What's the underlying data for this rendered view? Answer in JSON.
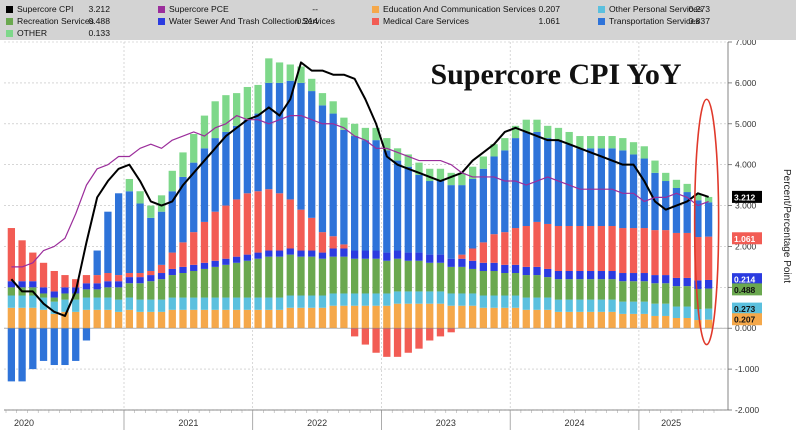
{
  "chart_data": {
    "type": "bar",
    "title": "Supercore CPI YoY",
    "ylabel": "Percent/Percentage Point",
    "ylim": [
      -2.0,
      7.0
    ],
    "yticks": [
      "7.000",
      "6.000",
      "5.000",
      "4.000",
      "3.000",
      "2.000",
      "1.000",
      "0.000",
      "-1.000",
      "-2.000"
    ],
    "years": [
      "2020",
      "2021",
      "2022",
      "2023",
      "2024",
      "2025"
    ],
    "month_count": 66,
    "series": [
      {
        "name": "Education And Communication Services",
        "value": "0.207",
        "color": "#f5a84a",
        "values": [
          0.5,
          0.5,
          0.5,
          0.45,
          0.35,
          0.4,
          0.4,
          0.45,
          0.45,
          0.45,
          0.4,
          0.45,
          0.4,
          0.4,
          0.4,
          0.45,
          0.45,
          0.45,
          0.45,
          0.45,
          0.45,
          0.45,
          0.45,
          0.45,
          0.45,
          0.45,
          0.5,
          0.5,
          0.5,
          0.5,
          0.55,
          0.55,
          0.55,
          0.55,
          0.55,
          0.55,
          0.6,
          0.6,
          0.6,
          0.6,
          0.6,
          0.55,
          0.55,
          0.55,
          0.5,
          0.5,
          0.5,
          0.5,
          0.45,
          0.45,
          0.45,
          0.4,
          0.4,
          0.4,
          0.4,
          0.4,
          0.4,
          0.35,
          0.35,
          0.35,
          0.3,
          0.3,
          0.25,
          0.25,
          0.2,
          0.21
        ]
      },
      {
        "name": "Other Personal Services",
        "value": "0.273",
        "color": "#5bc0de",
        "values": [
          0.3,
          0.3,
          0.3,
          0.3,
          0.3,
          0.3,
          0.3,
          0.3,
          0.3,
          0.3,
          0.3,
          0.3,
          0.3,
          0.3,
          0.3,
          0.3,
          0.3,
          0.3,
          0.3,
          0.3,
          0.3,
          0.3,
          0.3,
          0.3,
          0.3,
          0.3,
          0.3,
          0.3,
          0.3,
          0.3,
          0.3,
          0.3,
          0.3,
          0.3,
          0.3,
          0.3,
          0.3,
          0.3,
          0.3,
          0.3,
          0.3,
          0.3,
          0.3,
          0.3,
          0.3,
          0.3,
          0.3,
          0.3,
          0.3,
          0.3,
          0.3,
          0.3,
          0.3,
          0.3,
          0.3,
          0.3,
          0.3,
          0.3,
          0.3,
          0.3,
          0.3,
          0.3,
          0.28,
          0.28,
          0.27,
          0.27
        ]
      },
      {
        "name": "Recreation Services",
        "value": "0.488",
        "color": "#6aa84f",
        "values": [
          0.2,
          0.2,
          0.2,
          0.1,
          0.1,
          0.15,
          0.15,
          0.2,
          0.2,
          0.25,
          0.3,
          0.35,
          0.4,
          0.45,
          0.5,
          0.55,
          0.6,
          0.65,
          0.7,
          0.75,
          0.8,
          0.85,
          0.9,
          0.95,
          1.0,
          1.0,
          1.0,
          0.95,
          0.95,
          0.9,
          0.9,
          0.9,
          0.85,
          0.85,
          0.85,
          0.8,
          0.8,
          0.75,
          0.75,
          0.7,
          0.7,
          0.65,
          0.65,
          0.6,
          0.6,
          0.6,
          0.55,
          0.55,
          0.55,
          0.55,
          0.5,
          0.5,
          0.5,
          0.5,
          0.5,
          0.5,
          0.5,
          0.5,
          0.5,
          0.5,
          0.5,
          0.5,
          0.5,
          0.5,
          0.49,
          0.49
        ]
      },
      {
        "name": "Water Sewer And Trash Collection Services",
        "value": "0.214",
        "color": "#2b3be0",
        "values": [
          0.15,
          0.15,
          0.15,
          0.15,
          0.15,
          0.15,
          0.15,
          0.15,
          0.15,
          0.15,
          0.15,
          0.15,
          0.15,
          0.15,
          0.15,
          0.15,
          0.15,
          0.15,
          0.15,
          0.15,
          0.15,
          0.15,
          0.15,
          0.15,
          0.15,
          0.15,
          0.15,
          0.15,
          0.15,
          0.15,
          0.2,
          0.2,
          0.2,
          0.2,
          0.2,
          0.2,
          0.2,
          0.2,
          0.2,
          0.2,
          0.2,
          0.2,
          0.2,
          0.2,
          0.2,
          0.2,
          0.2,
          0.2,
          0.2,
          0.2,
          0.2,
          0.2,
          0.2,
          0.2,
          0.2,
          0.2,
          0.2,
          0.2,
          0.2,
          0.2,
          0.2,
          0.2,
          0.2,
          0.2,
          0.21,
          0.21
        ]
      },
      {
        "name": "Medical Care Services",
        "value": "1.061",
        "color": "#f25c54",
        "values": [
          1.3,
          1.0,
          0.7,
          0.6,
          0.5,
          0.3,
          0.2,
          0.2,
          0.2,
          0.2,
          0.15,
          0.1,
          0.1,
          0.1,
          0.2,
          0.4,
          0.6,
          0.8,
          1.0,
          1.2,
          1.3,
          1.4,
          1.5,
          1.5,
          1.5,
          1.4,
          1.2,
          1.0,
          0.8,
          0.5,
          0.3,
          0.1,
          -0.2,
          -0.4,
          -0.6,
          -0.7,
          -0.7,
          -0.6,
          -0.5,
          -0.3,
          -0.2,
          -0.1,
          0.1,
          0.3,
          0.5,
          0.7,
          0.8,
          0.9,
          1.0,
          1.1,
          1.1,
          1.1,
          1.1,
          1.1,
          1.1,
          1.1,
          1.1,
          1.1,
          1.1,
          1.1,
          1.1,
          1.1,
          1.1,
          1.1,
          1.06,
          1.06
        ]
      },
      {
        "name": "Transportation Services",
        "value": "0.837",
        "color": "#2e73d9",
        "values": [
          -1.3,
          -1.3,
          -1.0,
          -0.8,
          -0.9,
          -0.9,
          -0.8,
          -0.3,
          0.6,
          1.5,
          2.0,
          2.0,
          1.7,
          1.3,
          1.3,
          1.5,
          1.6,
          1.7,
          1.8,
          1.8,
          1.8,
          1.8,
          1.8,
          1.9,
          2.6,
          2.7,
          2.9,
          3.1,
          3.1,
          3.1,
          3.0,
          2.8,
          2.8,
          2.7,
          2.7,
          2.5,
          2.2,
          2.1,
          1.9,
          1.8,
          1.8,
          1.8,
          1.7,
          1.7,
          1.8,
          1.9,
          2.0,
          2.2,
          2.3,
          2.2,
          2.1,
          2.1,
          2.0,
          1.9,
          1.9,
          1.9,
          1.9,
          1.9,
          1.8,
          1.7,
          1.4,
          1.2,
          1.1,
          1.0,
          0.9,
          0.84
        ]
      },
      {
        "name": "OTHER",
        "value": "0.133",
        "color": "#7ed88a",
        "values": [
          0.0,
          0.0,
          0.0,
          0.0,
          0.0,
          0.0,
          0.0,
          0.0,
          0.0,
          0.0,
          0.0,
          0.3,
          0.3,
          0.3,
          0.4,
          0.5,
          0.6,
          0.7,
          0.8,
          0.9,
          0.9,
          0.8,
          0.8,
          0.7,
          0.6,
          0.5,
          0.4,
          0.4,
          0.3,
          0.3,
          0.3,
          0.3,
          0.3,
          0.3,
          0.3,
          0.3,
          0.3,
          0.3,
          0.3,
          0.3,
          0.3,
          0.3,
          0.3,
          0.3,
          0.3,
          0.3,
          0.3,
          0.3,
          0.3,
          0.3,
          0.3,
          0.3,
          0.3,
          0.3,
          0.3,
          0.3,
          0.3,
          0.3,
          0.3,
          0.3,
          0.3,
          0.2,
          0.2,
          0.2,
          0.15,
          0.13
        ]
      }
    ],
    "lines": [
      {
        "name": "Supercore CPI",
        "value": "3.212",
        "color": "#000000",
        "values": [
          1.2,
          0.9,
          0.9,
          0.6,
          0.4,
          0.3,
          0.9,
          2.1,
          3.2,
          3.6,
          3.9,
          4.0,
          3.6,
          3.1,
          3.0,
          3.1,
          3.5,
          3.8,
          4.1,
          4.4,
          4.7,
          4.9,
          5.1,
          5.2,
          5.4,
          5.2,
          5.6,
          6.5,
          6.3,
          6.3,
          6.2,
          6.2,
          6.1,
          5.6,
          5.0,
          4.2,
          4.0,
          3.9,
          3.8,
          3.7,
          3.6,
          3.7,
          3.8,
          4.1,
          4.3,
          4.5,
          4.8,
          4.9,
          4.8,
          4.7,
          4.6,
          4.6,
          4.5,
          4.4,
          4.3,
          4.2,
          4.1,
          4.0,
          4.0,
          3.6,
          3.1,
          2.9,
          3.0,
          3.1,
          3.3,
          3.21
        ]
      },
      {
        "name": "Supercore PCE",
        "value": "--",
        "color": "#9b2d9b",
        "values": [
          1.5,
          1.5,
          1.6,
          1.9,
          2.0,
          2.2,
          2.8,
          3.5,
          3.9,
          4.0,
          4.2,
          4.2,
          4.4,
          4.5,
          4.4,
          4.6,
          4.7,
          4.8,
          4.7,
          4.9,
          5.0,
          5.2,
          5.1,
          5.1,
          5.0,
          5.1,
          5.2,
          5.2,
          5.1,
          5.0,
          5.0,
          4.9,
          4.7,
          4.6,
          4.4,
          4.4,
          4.3,
          4.2,
          4.1,
          4.1,
          4.1,
          4.0,
          3.8,
          3.7,
          3.7,
          3.7,
          3.6,
          3.6,
          3.5,
          3.6,
          3.7,
          3.6,
          3.5,
          3.4,
          3.4,
          3.4,
          3.4,
          3.3,
          3.3,
          3.1,
          3.2,
          3.2,
          3.3,
          3.2,
          3.0,
          3.1
        ]
      }
    ],
    "legend": [
      {
        "name": "Supercore CPI",
        "value": "3.212",
        "color": "#000000"
      },
      {
        "name": "Supercore PCE",
        "value": "--",
        "color": "#9b2d9b"
      },
      {
        "name": "Education And Communication Services",
        "value": "0.207",
        "color": "#f5a84a"
      },
      {
        "name": "Other Personal Services",
        "value": "0.273",
        "color": "#5bc0de"
      },
      {
        "name": "Recreation Services",
        "value": "0.488",
        "color": "#6aa84f"
      },
      {
        "name": "Water Sewer And Trash Collection Services",
        "value": "0.214",
        "color": "#2b3be0"
      },
      {
        "name": "Medical Care Services",
        "value": "1.061",
        "color": "#f25c54"
      },
      {
        "name": "Transportation Services",
        "value": "0.837",
        "color": "#2e73d9"
      },
      {
        "name": "OTHER",
        "value": "0.133",
        "color": "#7ed88a"
      }
    ],
    "right_labels": [
      {
        "value": "3.212",
        "y": 3.212,
        "color": "#000000",
        "text_color": "#ffffff"
      },
      {
        "value": "1.061",
        "y": 2.2,
        "color": "#f25c54",
        "text_color": "#ffffff"
      },
      {
        "value": "0.214",
        "y": 1.2,
        "color": "#2b3be0",
        "text_color": "#ffffff"
      },
      {
        "value": "0.488",
        "y": 0.95,
        "color": "#6aa84f",
        "text_color": "#111111"
      },
      {
        "value": "0.273",
        "y": 0.48,
        "color": "#5bc0de",
        "text_color": "#111111"
      },
      {
        "value": "0.207",
        "y": 0.22,
        "color": "#f5a84a",
        "text_color": "#111111"
      }
    ]
  }
}
